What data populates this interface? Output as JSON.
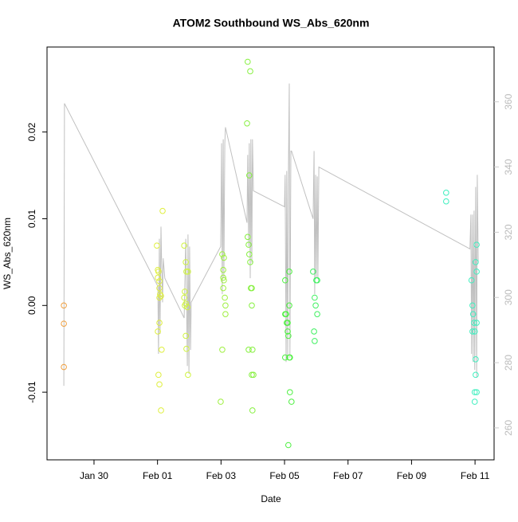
{
  "chart_data": {
    "type": "scatter",
    "title": "ATOM2 Southbound WS_Abs_620nm",
    "x_label": "Date",
    "y_label": "WS_Abs_620nm",
    "xlim": [
      28.52,
      42.6
    ],
    "ylim": [
      -0.0178,
      0.0298
    ],
    "y2lim": [
      250.2,
      376.8
    ],
    "xticks": [
      {
        "value": 30,
        "label": "Jan 30"
      },
      {
        "value": 32,
        "label": "Feb 01"
      },
      {
        "value": 34,
        "label": "Feb 03"
      },
      {
        "value": 36,
        "label": "Feb 05"
      },
      {
        "value": 38,
        "label": "Feb 07"
      },
      {
        "value": 40,
        "label": "Feb 09"
      },
      {
        "value": 42,
        "label": "Feb 11"
      }
    ],
    "yticks": [
      -0.01,
      {
        "value": 0,
        "label": "0.00"
      },
      0.01,
      0.02
    ],
    "y2ticks": [
      260,
      280,
      300,
      320,
      340,
      360
    ],
    "x": [
      29.05,
      29.05,
      29.05,
      31.98,
      32.01,
      32.01,
      32.03,
      32.06,
      32.06,
      32.08,
      32.06,
      32.11,
      32.01,
      32.06,
      32.13,
      32.03,
      32.06,
      32.11,
      32.16,
      32.84,
      32.89,
      32.91,
      32.96,
      32.86,
      32.84,
      32.89,
      32.86,
      32.94,
      32.89,
      32.91,
      32.96,
      34.04,
      34.07,
      34.09,
      34.07,
      34.12,
      34.14,
      34.04,
      34.14,
      33.99,
      34.09,
      34.07,
      34.84,
      34.92,
      34.82,
      34.89,
      34.84,
      34.87,
      34.89,
      34.92,
      34.94,
      34.97,
      34.87,
      34.99,
      34.97,
      35.02,
      34.97,
      34.99,
      36.02,
      36.02,
      36.05,
      36.07,
      36.1,
      36.1,
      36.12,
      36.02,
      36.15,
      36.17,
      36.15,
      36.15,
      36.17,
      36.22,
      36.12,
      36.9,
      36.95,
      37.0,
      37.03,
      36.98,
      37.03,
      36.93,
      36.95,
      41.09,
      41.09,
      41.89,
      41.92,
      41.94,
      41.97,
      41.99,
      41.92,
      42.05,
      42.02,
      42.02,
      41.99,
      42.05,
      41.99,
      42.05,
      42.02,
      42.05
    ],
    "values": [
      0,
      -0.0021,
      -0.0071,
      0.0069,
      0.0041,
      0.0032,
      0.0039,
      0.0028,
      0.002,
      0.0013,
      0.0009,
      0.0011,
      -0.003,
      -0.002,
      -0.0051,
      -0.008,
      -0.0091,
      -0.0121,
      0.0109,
      0.0069,
      0.005,
      0.0039,
      0.0039,
      0.0016,
      0.0009,
      0.0002,
      0,
      -0.0002,
      -0.0035,
      -0.005,
      -0.008,
      0.0059,
      0.0041,
      0.0029,
      0.002,
      0.0009,
      0,
      -0.0051,
      -0.001,
      -0.0111,
      0.0055,
      0.0032,
      0.0281,
      0.027,
      0.021,
      0.015,
      0.0079,
      0.007,
      0.0059,
      0.005,
      0.002,
      0.002,
      -0.0051,
      -0.0051,
      -0.008,
      -0.008,
      0,
      -0.0121,
      0.0029,
      -0.001,
      -0.001,
      -0.002,
      -0.002,
      -0.003,
      -0.0035,
      -0.006,
      -0.006,
      -0.006,
      0.0039,
      0,
      -0.01,
      -0.0111,
      -0.0161,
      0.0039,
      0.0009,
      0.0029,
      0.0029,
      0,
      -0.001,
      -0.003,
      -0.0041,
      0.013,
      0.012,
      0.0029,
      0,
      -0.001,
      -0.002,
      -0.003,
      -0.003,
      -0.002,
      -0.0062,
      -0.008,
      -0.01,
      -0.01,
      -0.0111,
      0.007,
      0.005,
      0.0039
    ],
    "point_colors": [
      "#f0a040",
      "#f0a040",
      "#f0a040",
      "#dfef3f",
      "#dfef3f",
      "#dfef3f",
      "#dfef3f",
      "#dfef3f",
      "#dfef3f",
      "#dfef3f",
      "#dfef3f",
      "#dfef3f",
      "#dfef3f",
      "#dfef3f",
      "#dfef3f",
      "#dfef3f",
      "#dfef3f",
      "#dfef3f",
      "#dfef3f",
      "#cff33f",
      "#cff33f",
      "#cff33f",
      "#cff33f",
      "#cff33f",
      "#cff33f",
      "#cff33f",
      "#cff33f",
      "#cff33f",
      "#cff33f",
      "#cff33f",
      "#cff33f",
      "#9ef03f",
      "#9ef03f",
      "#9ef03f",
      "#9ef03f",
      "#9ef03f",
      "#9ef03f",
      "#9ef03f",
      "#9ef03f",
      "#9ef03f",
      "#9ef03f",
      "#9ef03f",
      "#86f03f",
      "#86f03f",
      "#86f03f",
      "#86f03f",
      "#86f03f",
      "#86f03f",
      "#86f03f",
      "#86f03f",
      "#86f03f",
      "#86f03f",
      "#86f03f",
      "#86f03f",
      "#86f03f",
      "#86f03f",
      "#86f03f",
      "#86f03f",
      "#4cf03f",
      "#4cf03f",
      "#4cf03f",
      "#4cf03f",
      "#4cf03f",
      "#4cf03f",
      "#4cf03f",
      "#4cf03f",
      "#4cf03f",
      "#4cf03f",
      "#4cf03f",
      "#4cf03f",
      "#4cf03f",
      "#4cf03f",
      "#4cf03f",
      "#3ff060",
      "#3ff060",
      "#3ff060",
      "#3ff060",
      "#3ff060",
      "#3ff060",
      "#3ff060",
      "#3ff060",
      "#3fefbf",
      "#3fefbf",
      "#3fefbf",
      "#3fefbf",
      "#3fefbf",
      "#3fefbf",
      "#3fefbf",
      "#3fefbf",
      "#3fefbf",
      "#3fefbf",
      "#3fefbf",
      "#3fefbf",
      "#3fefbf",
      "#3fefbf",
      "#3fefbf",
      "#3fefbf",
      "#3fefbf"
    ],
    "line": {
      "axis": "y2",
      "color": "#c0c0c0",
      "x": [
        29.05,
        29.07,
        32.01,
        32.03,
        32.06,
        32.08,
        32.11,
        32.13,
        32.16,
        32.18,
        32.23,
        32.84,
        32.89,
        32.94,
        32.96,
        32.99,
        33.01,
        33.04,
        33.06,
        33.99,
        34.02,
        34.04,
        34.07,
        34.09,
        34.12,
        34.14,
        34.82,
        34.84,
        34.87,
        34.89,
        34.92,
        34.94,
        34.97,
        34.99,
        35.02,
        36.0,
        36.02,
        36.05,
        36.07,
        36.1,
        36.12,
        36.15,
        36.17,
        36.2,
        36.22,
        36.9,
        36.93,
        36.95,
        36.98,
        37.0,
        37.03,
        37.05,
        37.08,
        41.84,
        41.87,
        41.89,
        41.92,
        41.94,
        41.97,
        41.99,
        42.02,
        42.05,
        42.07,
        42.1
      ],
      "values": [
        272.9,
        359.5,
        303.4,
        282.7,
        318.0,
        288.8,
        321.7,
        310.7,
        298.5,
        312.0,
        305.9,
        293.7,
        318.0,
        279.0,
        319.3,
        276.6,
        315.6,
        283.9,
        298.5,
        315.6,
        347.3,
        301.0,
        348.5,
        305.9,
        347.3,
        352.2,
        322.9,
        343.7,
        315.6,
        347.3,
        305.9,
        348.5,
        310.7,
        348.5,
        332.7,
        327.8,
        337.6,
        280.2,
        338.8,
        281.5,
        335.1,
        365.6,
        281.5,
        344.9,
        344.9,
        324.1,
        344.9,
        301.0,
        337.6,
        305.9,
        337.1,
        305.9,
        340.0,
        314.9,
        325.4,
        282.7,
        325.4,
        280.2,
        326.6,
        277.8,
        333.9,
        275.4,
        337.6,
        310.7
      ]
    }
  }
}
